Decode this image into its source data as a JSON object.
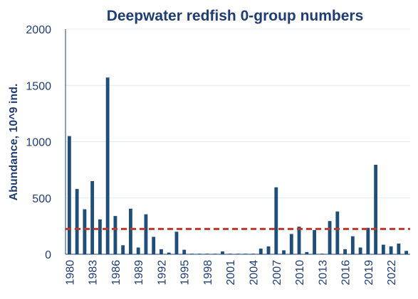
{
  "chart_data": {
    "type": "bar",
    "title": "Deepwater redfish 0-group numbers",
    "ylabel": "Abundance,  10^9 ind.",
    "xlabel": "",
    "ylim": [
      0,
      2000
    ],
    "yticks": [
      0,
      500,
      1000,
      1500,
      2000
    ],
    "xtick_labels": [
      "1980",
      "1983",
      "1986",
      "1989",
      "1992",
      "1995",
      "1998",
      "2001",
      "2004",
      "2007",
      "2010",
      "2013",
      "2016",
      "2019",
      "2022"
    ],
    "grid": true,
    "categories": [
      1980,
      1981,
      1982,
      1983,
      1984,
      1985,
      1986,
      1987,
      1988,
      1989,
      1990,
      1991,
      1992,
      1993,
      1994,
      1995,
      1996,
      1997,
      1998,
      1999,
      2000,
      2001,
      2002,
      2003,
      2004,
      2005,
      2006,
      2007,
      2008,
      2009,
      2010,
      2011,
      2012,
      2013,
      2014,
      2015,
      2016,
      2017,
      2018,
      2019,
      2020,
      2021,
      2022,
      2023,
      2024
    ],
    "values": [
      1050,
      580,
      400,
      650,
      310,
      1570,
      340,
      80,
      405,
      60,
      355,
      155,
      45,
      15,
      200,
      40,
      5,
      5,
      5,
      5,
      25,
      5,
      5,
      5,
      5,
      50,
      70,
      595,
      35,
      180,
      245,
      20,
      215,
      5,
      295,
      380,
      45,
      160,
      60,
      235,
      795,
      85,
      70,
      95,
      30
    ],
    "reference_line": {
      "value": 225,
      "style": "dashed",
      "color": "#c0392b"
    },
    "bar_color": "#1f4e79"
  }
}
